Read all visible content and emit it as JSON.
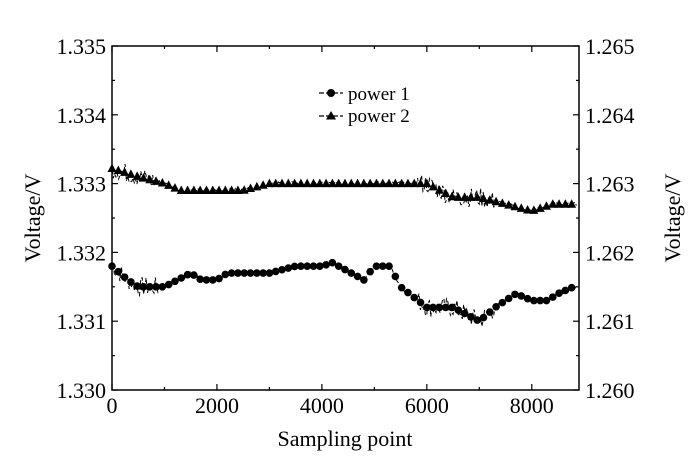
{
  "chart_data": {
    "type": "scatter",
    "title": "",
    "xlabel": "Sampling point",
    "ylabel_left": "Voltage/V",
    "ylabel_right": "Voltage/V",
    "xlim": [
      0,
      8900
    ],
    "ylim_left": [
      1.33,
      1.335
    ],
    "ylim_right": [
      1.26,
      1.265
    ],
    "x_ticks": [
      "0",
      "2000",
      "4000",
      "6000",
      "8000"
    ],
    "y_ticks_left": [
      "1.330",
      "1.331",
      "1.332",
      "1.333",
      "1.334",
      "1.335"
    ],
    "y_ticks_right": [
      "1.260",
      "1.261",
      "1.262",
      "1.263",
      "1.264",
      "1.265"
    ],
    "grid": false,
    "legend_position": "top-center",
    "series": [
      {
        "name": "power 1",
        "marker": "circle",
        "axis": "left",
        "x": [
          0,
          300,
          500,
          800,
          1000,
          1500,
          1700,
          2000,
          2200,
          3000,
          3500,
          4000,
          4200,
          4800,
          5000,
          5300,
          5500,
          6000,
          6500,
          7000,
          7300,
          7700,
          8000,
          8300,
          8500,
          8800
        ],
        "y": [
          1.3318,
          1.3316,
          1.3315,
          1.3315,
          1.3315,
          1.3317,
          1.3316,
          1.3316,
          1.3317,
          1.3317,
          1.3318,
          1.3318,
          1.33185,
          1.3316,
          1.3318,
          1.3318,
          1.3315,
          1.3312,
          1.3312,
          1.331,
          1.3312,
          1.3314,
          1.3313,
          1.3313,
          1.3314,
          1.3315
        ]
      },
      {
        "name": "power 2",
        "marker": "triangle",
        "axis": "right",
        "x": [
          0,
          500,
          1000,
          1300,
          2000,
          2500,
          3000,
          4000,
          5000,
          5500,
          6000,
          6500,
          7000,
          7500,
          8000,
          8400,
          8800
        ],
        "y": [
          1.26322,
          1.2631,
          1.263,
          1.2629,
          1.2629,
          1.2629,
          1.263,
          1.263,
          1.263,
          1.263,
          1.263,
          1.2628,
          1.2628,
          1.2627,
          1.2626,
          1.2627,
          1.2627
        ]
      }
    ]
  }
}
